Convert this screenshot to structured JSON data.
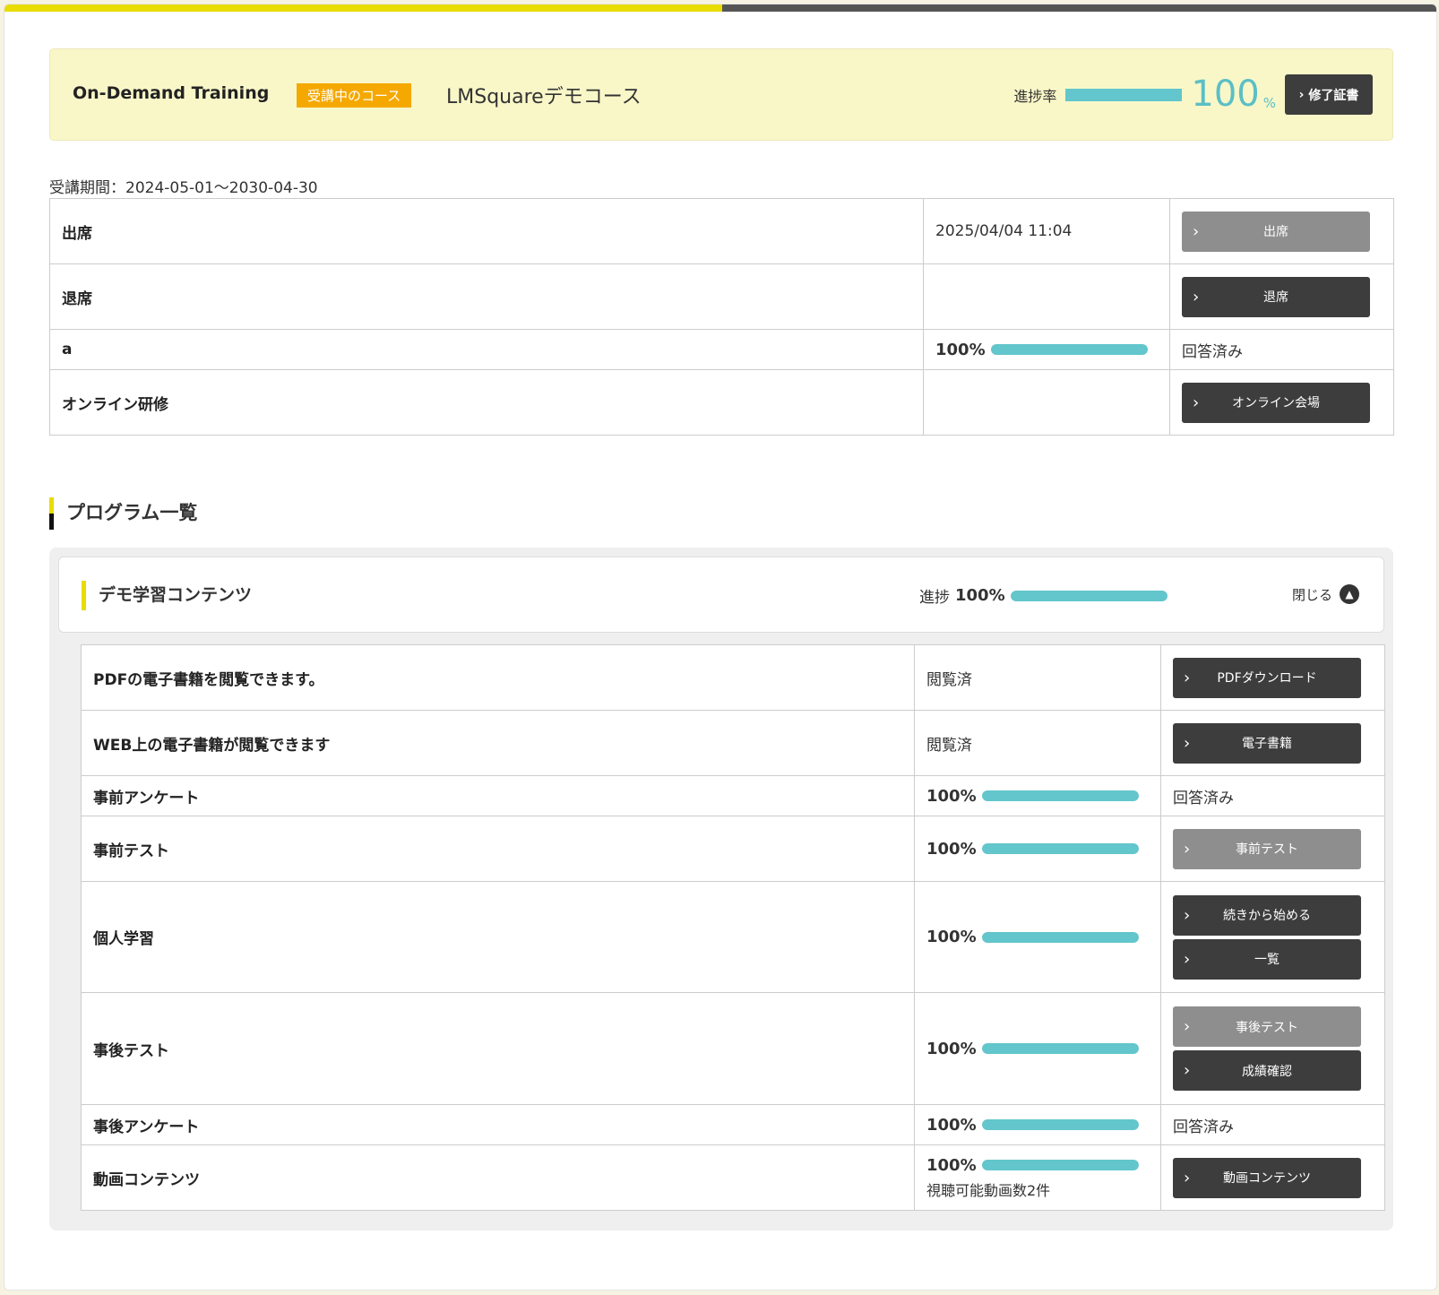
{
  "header": {
    "brand": "On-Demand Training",
    "badge": "受講中のコース",
    "course_title": "LMSquareデモコース",
    "progress_label": "進捗率",
    "progress_value": "100",
    "progress_unit": "%",
    "progress_fraction": 1.0,
    "certificate_label": "修了証書"
  },
  "period": "受講期間：2024-05-01～2030-04-30",
  "attendance": {
    "rows": [
      {
        "name": "出席",
        "info": "2025/04/04 11:04",
        "button": "出席",
        "button_style": "gray"
      },
      {
        "name": "退席",
        "info": "",
        "button": "退席",
        "button_style": "dark"
      },
      {
        "name": "a",
        "progress": "100%",
        "status": "回答済み"
      },
      {
        "name": "オンライン研修",
        "info": "",
        "button": "オンライン会場",
        "button_style": "dark"
      }
    ]
  },
  "section_title": "プログラム一覧",
  "group": {
    "title": "デモ学習コンテンツ",
    "progress_label": "進捗",
    "progress_value": "100%",
    "close_label": "閉じる",
    "rows": [
      {
        "name": "PDFの電子書籍を閲覧できます。",
        "status": "閲覧済",
        "buttons": [
          "PDFダウンロード"
        ]
      },
      {
        "name": "WEB上の電子書籍が閲覧できます",
        "status": "閲覧済",
        "buttons": [
          "電子書籍"
        ]
      },
      {
        "name": "事前アンケート",
        "progress": "100%",
        "status": "回答済み"
      },
      {
        "name": "事前テスト",
        "progress": "100%",
        "buttons": [
          "事前テスト"
        ]
      },
      {
        "name": "個人学習",
        "progress": "100%",
        "buttons": [
          "続きから始める",
          "一覧"
        ]
      },
      {
        "name": "事後テスト",
        "progress": "100%",
        "buttons": [
          "事後テスト",
          "成績確認"
        ]
      },
      {
        "name": "事後アンケート",
        "progress": "100%",
        "status": "回答済み"
      },
      {
        "name": "動画コンテンツ",
        "progress": "100%",
        "note": "視聴可能動画数2件",
        "buttons": [
          "動画コンテンツ"
        ]
      }
    ]
  },
  "colors": {
    "accent_yellow": "#e8dc00",
    "progress_teal": "#62c6cc",
    "badge_orange": "#f5a800",
    "button_dark": "#3d3d3d",
    "button_gray": "#8e8e8e"
  },
  "icons": {
    "button": "chevron-right-icon",
    "close": "chevron-up-icon"
  }
}
